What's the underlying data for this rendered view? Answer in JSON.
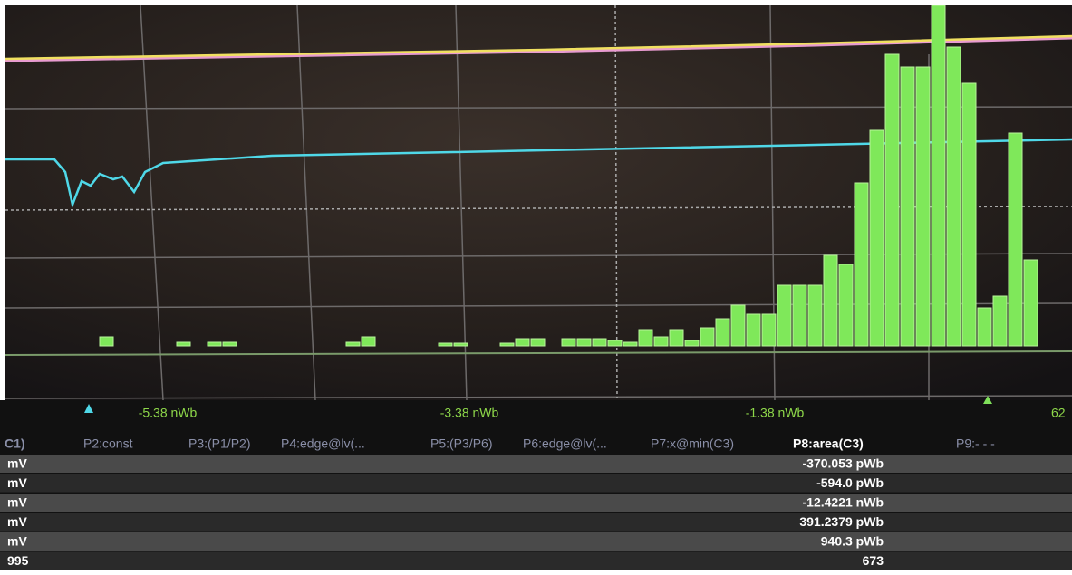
{
  "display": {
    "axis_labels": [
      "-5.38 nWb",
      "-3.38 nWb",
      "-1.38 nWb",
      "62"
    ],
    "histogram": {
      "counts": [
        10,
        0,
        0,
        0,
        0,
        4,
        0,
        4,
        4,
        0,
        0,
        0,
        0,
        0,
        0,
        0,
        4,
        10,
        0,
        0,
        0,
        0,
        3,
        3,
        0,
        0,
        3,
        8,
        8,
        0,
        8,
        8,
        8,
        6,
        4,
        18,
        10,
        18,
        6,
        20,
        30,
        45,
        35,
        35,
        67,
        67,
        67,
        100,
        90,
        180,
        238,
        322,
        308,
        308,
        380,
        330,
        290,
        42,
        55,
        235,
        95
      ]
    }
  },
  "table": {
    "headers": [
      "C1)",
      "P2:const",
      "P3:(P1/P2)",
      "P4:edge@lv(...",
      "P5:(P3/P6)",
      "P6:edge@lv(...",
      "P7:x@min(C3)",
      "P8:area(C3)",
      "P9:- - -"
    ],
    "row_units": [
      "mV",
      "mV",
      "mV",
      "mV",
      "mV",
      "995"
    ],
    "p8_values": [
      "-370.053 pWb",
      "-594.0 pWb",
      "-12.4221 nWb",
      "391.2379 pWb",
      "940.3 pWb",
      "673"
    ]
  }
}
